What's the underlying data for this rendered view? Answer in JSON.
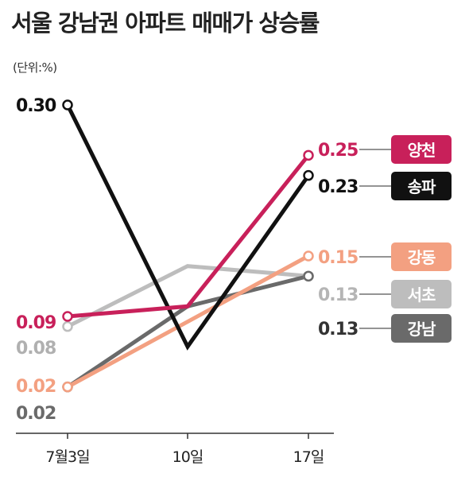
{
  "chart_data": {
    "type": "line",
    "title": "서울 강남권 아파트 매매가 상승률",
    "unit_label": "(단위:%)",
    "categories": [
      "7월3일",
      "10일",
      "17일"
    ],
    "series": [
      {
        "name": "양천",
        "values": [
          0.09,
          0.1,
          0.25
        ],
        "color": "#c8205a",
        "start_label": "0.09",
        "end_label": "0.25"
      },
      {
        "name": "송파",
        "values": [
          0.3,
          0.06,
          0.23
        ],
        "color": "#111111",
        "start_label": "0.30",
        "end_label": "0.23"
      },
      {
        "name": "강동",
        "values": [
          0.02,
          null,
          0.15
        ],
        "color": "#f3a081",
        "start_label": "0.02",
        "end_label": "0.15"
      },
      {
        "name": "서초",
        "values": [
          0.08,
          0.14,
          0.13
        ],
        "color": "#bdbdbd",
        "start_label": "0.08",
        "end_label": "0.13"
      },
      {
        "name": "강남",
        "values": [
          0.02,
          0.1,
          0.13
        ],
        "color": "#6a6a6a",
        "start_label": "0.02",
        "end_label": "0.13"
      }
    ],
    "ylim": [
      0,
      0.3
    ],
    "grid": false,
    "legend": "right"
  }
}
